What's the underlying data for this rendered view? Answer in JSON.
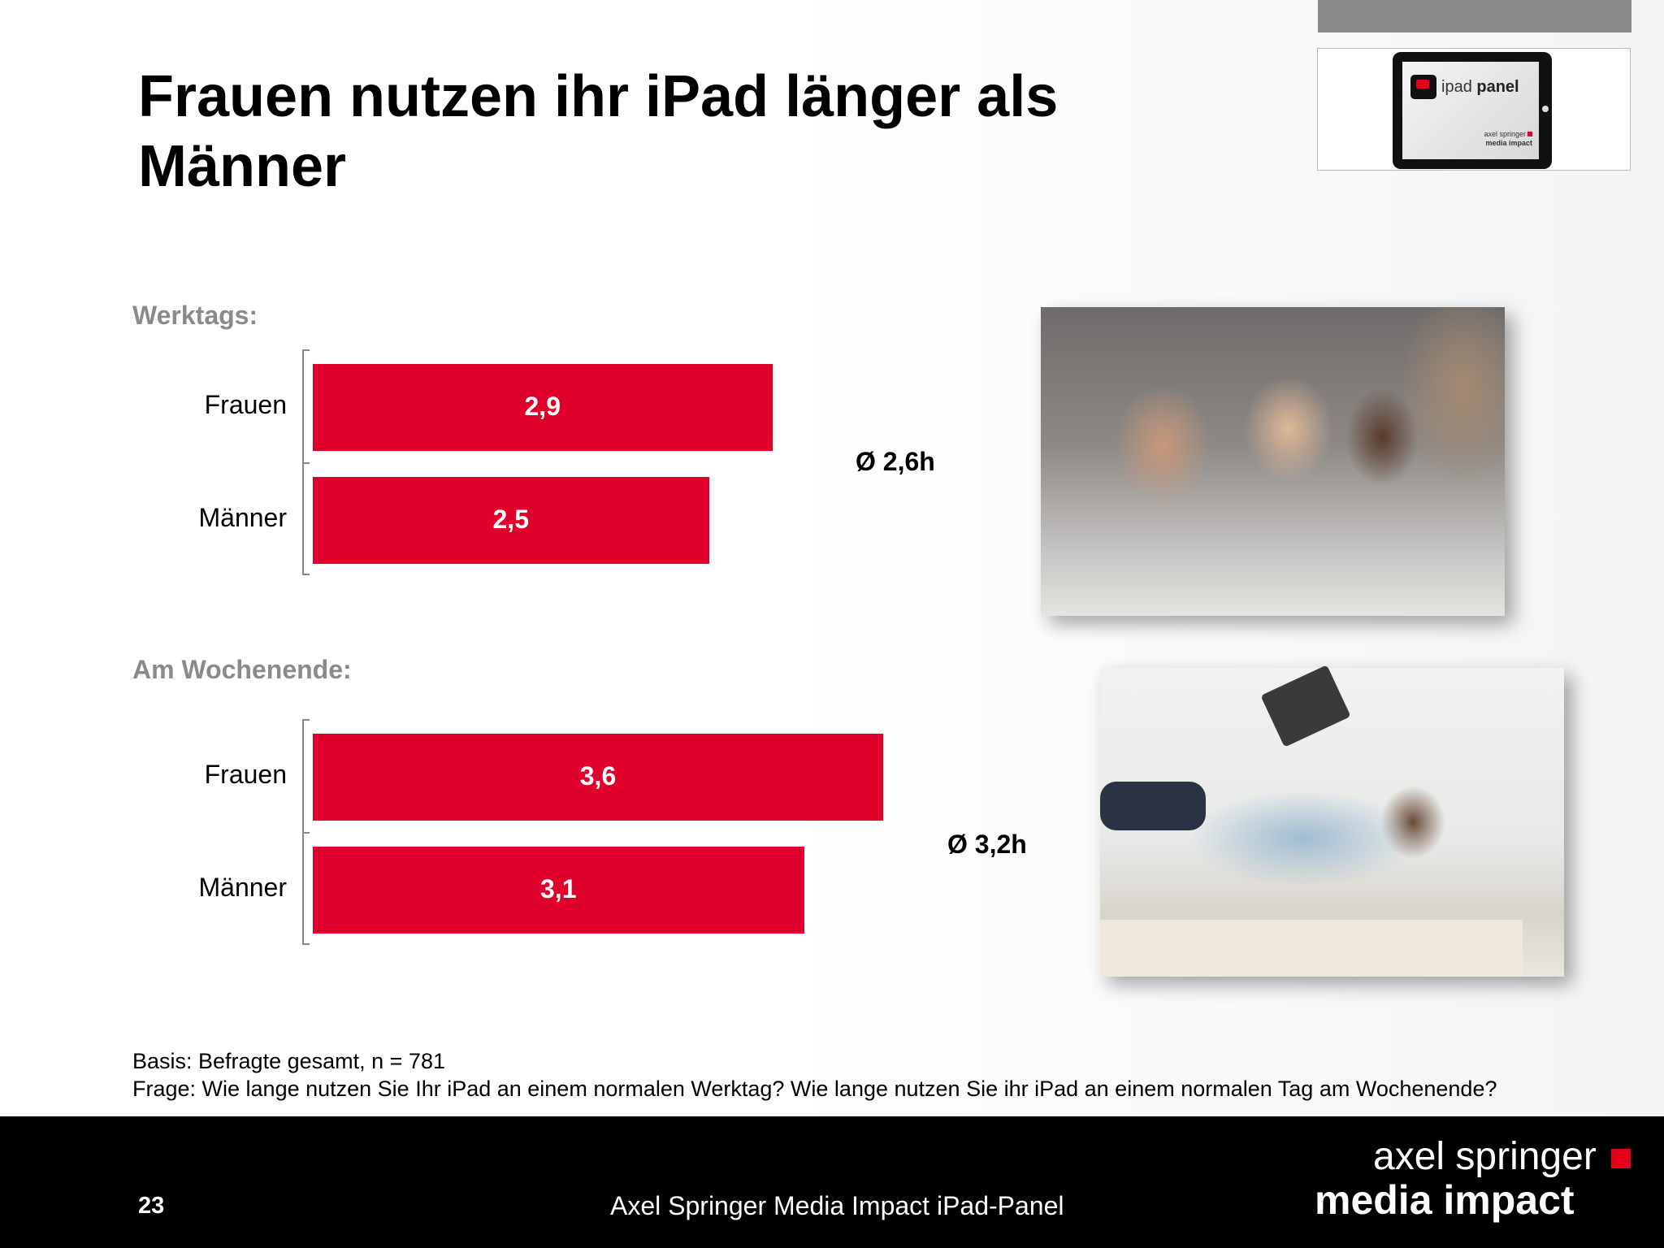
{
  "title": "Frauen nutzen ihr iPad länger als Männer",
  "logo": {
    "app_name_light": "ipad ",
    "app_name_bold": "panel",
    "brand_line1": "axel springer",
    "brand_line2": "media impact"
  },
  "chart_data": [
    {
      "type": "bar",
      "orientation": "horizontal",
      "section_label": "Werktags:",
      "categories": [
        "Frauen",
        "Männer"
      ],
      "values": [
        2.9,
        2.5
      ],
      "value_labels": [
        "2,9",
        "2,5"
      ],
      "xlim": [
        0,
        4.5
      ],
      "average_label": "Ø 2,6h",
      "color": "#df002b"
    },
    {
      "type": "bar",
      "orientation": "horizontal",
      "section_label": "Am Wochenende:",
      "categories": [
        "Frauen",
        "Männer"
      ],
      "values": [
        3.6,
        3.1
      ],
      "value_labels": [
        "3,6",
        "3,1"
      ],
      "xlim": [
        0,
        4.5
      ],
      "average_label": "Ø 3,2h",
      "color": "#df002b"
    }
  ],
  "footnotes": {
    "basis": "Basis: Befragte gesamt, n = 781",
    "frage": "Frage: Wie lange nutzen Sie Ihr iPad an einem normalen Werktag? Wie lange nutzen Sie ihr iPad an einem normalen Tag am Wochenende?"
  },
  "footer": {
    "page_number": "23",
    "center_text": "Axel Springer Media Impact iPad-Panel",
    "brand_line1": "axel springer",
    "brand_line2": "media impact"
  }
}
